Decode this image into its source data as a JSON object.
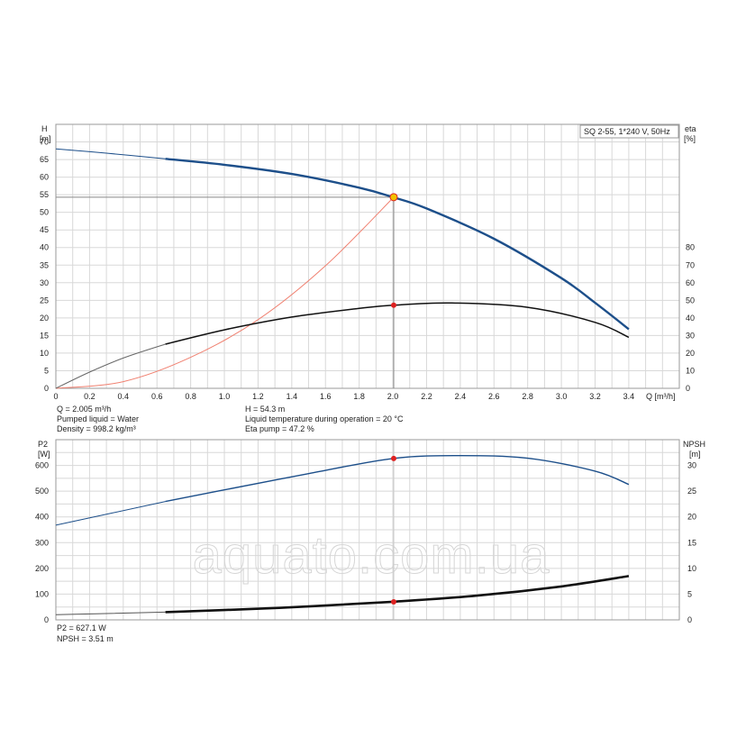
{
  "watermark": "aquato.com.ua",
  "colors": {
    "pump_curve": "#1d4f8a",
    "eta_curve": "#111111",
    "system_curve": "#f08070",
    "duty_point": "#f2c200",
    "marker": "#dd2222",
    "grid": "#d8d8d8",
    "ref_line": "#888888"
  },
  "chart_data": [
    {
      "type": "line",
      "legend": "SQ 2-55, 1*240 V, 50Hz",
      "legend_placement": "top-right",
      "grid": true,
      "xlabel": "Q [m³/h]",
      "ylabel_name": "H",
      "ylabel_unit": "[m]",
      "y2label_name": "eta",
      "y2label_unit": "[%]",
      "xlim": [
        0,
        3.7
      ],
      "ylim": [
        0,
        75
      ],
      "y2lim": [
        0,
        150
      ],
      "xticks": [
        "0",
        "0.2",
        "0.4",
        "0.6",
        "0.8",
        "1.0",
        "1.2",
        "1.4",
        "1.6",
        "1.8",
        "2.0",
        "2.2",
        "2.4",
        "2.6",
        "2.8",
        "3.0",
        "3.2",
        "3.4"
      ],
      "yticks": [
        "0",
        "5",
        "10",
        "15",
        "20",
        "25",
        "30",
        "35",
        "40",
        "45",
        "50",
        "55",
        "60",
        "65",
        "70"
      ],
      "y2ticks": [
        "0",
        "10",
        "20",
        "30",
        "40",
        "50",
        "60",
        "70",
        "80"
      ],
      "series": [
        {
          "key": "H",
          "axis": "left",
          "x": [
            0,
            0.3,
            0.65,
            1.0,
            1.4,
            1.8,
            2.0,
            2.2,
            2.6,
            3.0,
            3.2,
            3.4
          ],
          "y": [
            68,
            66.8,
            65.2,
            63.5,
            60.9,
            57.0,
            54.3,
            51.1,
            42.5,
            31.3,
            24.3,
            16.8
          ]
        },
        {
          "key": "eta",
          "axis": "right",
          "x": [
            0,
            0.2,
            0.4,
            0.65,
            1.0,
            1.4,
            1.8,
            2.0,
            2.35,
            2.8,
            3.2,
            3.4
          ],
          "y": [
            0,
            9.2,
            17.2,
            25.1,
            33.2,
            40.5,
            45.4,
            47.2,
            48.5,
            46.0,
            37.5,
            29.0
          ]
        },
        {
          "key": "system",
          "axis": "left",
          "x": [
            0,
            0.4,
            0.8,
            1.2,
            1.6,
            2.005
          ],
          "y": [
            0,
            1.9,
            8.8,
            19.5,
            34.8,
            54.3
          ]
        }
      ],
      "duty_point": {
        "x": 2.005,
        "y": 54.3
      },
      "eta_marker": {
        "x": 2.005,
        "y2": 47.2
      },
      "info": {
        "q": "Q = 2.005 m³/h",
        "liquid": "Pumped liquid = Water",
        "density": "Density = 998.2 kg/m³",
        "h": "H = 54.3 m",
        "temp": "Liquid temperature during operation = 20 °C",
        "eta": "Eta pump = 47.2 %"
      }
    },
    {
      "type": "line",
      "grid": true,
      "ylabel_name": "P2",
      "ylabel_unit": "[W]",
      "y2label_name": "NPSH",
      "y2label_unit": "[m]",
      "xlim": [
        0,
        3.7
      ],
      "ylim": [
        0,
        700
      ],
      "y2lim": [
        0,
        35
      ],
      "yticks": [
        "0",
        "100",
        "200",
        "300",
        "400",
        "500",
        "600"
      ],
      "y2ticks": [
        "0",
        "5",
        "10",
        "15",
        "20",
        "25",
        "30"
      ],
      "series": [
        {
          "key": "P2",
          "axis": "left",
          "x": [
            0,
            0.65,
            1.0,
            1.5,
            2.0,
            2.4,
            2.8,
            3.2,
            3.4
          ],
          "y": [
            368,
            460,
            505,
            568,
            627,
            638,
            628,
            578,
            526
          ]
        },
        {
          "key": "NPSH",
          "axis": "right",
          "x": [
            0,
            0.65,
            1.0,
            1.5,
            2.0,
            2.5,
            3.0,
            3.4
          ],
          "y": [
            1.0,
            1.5,
            1.9,
            2.6,
            3.51,
            4.7,
            6.5,
            8.5
          ]
        }
      ],
      "p2_marker": {
        "x": 2.005,
        "y": 627.1
      },
      "npsh_marker": {
        "x": 2.005,
        "y2": 3.51
      },
      "info": {
        "p2": "P2 = 627.1 W",
        "npsh": "NPSH = 3.51 m"
      }
    }
  ]
}
